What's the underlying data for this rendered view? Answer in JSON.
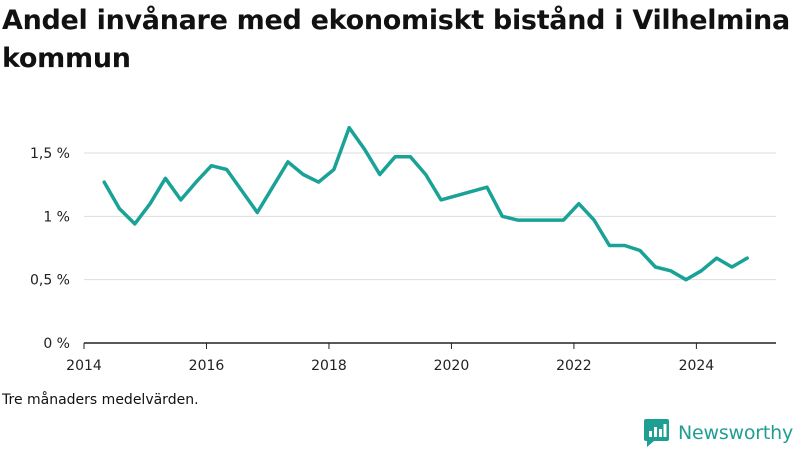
{
  "header": {
    "title": "Andel invånare med ekonomiskt bistånd i Vilhelmina kommun"
  },
  "caption": "Tre månaders medelvärden.",
  "brand": {
    "name": "Newsworthy",
    "icon": "newsworthy-logo-icon",
    "color": "#1f9e92"
  },
  "chart_data": {
    "type": "line",
    "title": "Andel invånare med ekonomiskt bistånd i Vilhelmina kommun",
    "xlabel": "",
    "ylabel": "",
    "x_ticks": [
      2014,
      2016,
      2018,
      2020,
      2022,
      2024
    ],
    "x_tick_labels": [
      "2014",
      "2016",
      "2018",
      "2020",
      "2022",
      "2024"
    ],
    "y_ticks": [
      0,
      0.5,
      1,
      1.5
    ],
    "y_tick_labels": [
      "0 %",
      "0,5 %",
      "1 %",
      "1,5 %"
    ],
    "xlim": [
      2014,
      2025.3
    ],
    "ylim": [
      0,
      1.8
    ],
    "grid": true,
    "line_color": "#1aa297",
    "series": [
      {
        "x": [
          2014.33,
          2014.58,
          2014.83,
          2015.08,
          2015.33,
          2015.58,
          2015.83,
          2016.08,
          2016.33,
          2016.58,
          2016.83,
          2017.08,
          2017.33,
          2017.58,
          2017.83,
          2018.08,
          2018.33,
          2018.58,
          2018.83,
          2019.08,
          2019.33,
          2019.58,
          2019.83,
          2020.58,
          2020.83,
          2021.08,
          2021.33,
          2021.58,
          2021.83,
          2022.08,
          2022.33,
          2022.58,
          2022.83,
          2023.08,
          2023.33,
          2023.58,
          2023.83,
          2024.08,
          2024.33,
          2024.58,
          2024.83
        ],
        "values": [
          1.27,
          1.06,
          0.94,
          1.1,
          1.3,
          1.13,
          1.27,
          1.4,
          1.37,
          1.2,
          1.03,
          1.23,
          1.43,
          1.33,
          1.27,
          1.37,
          1.7,
          1.53,
          1.33,
          1.47,
          1.47,
          1.33,
          1.13,
          1.23,
          1.0,
          0.97,
          0.97,
          0.97,
          0.97,
          1.1,
          0.97,
          0.77,
          0.77,
          0.73,
          0.6,
          0.57,
          0.5,
          0.57,
          0.67,
          0.6,
          0.67
        ]
      }
    ]
  }
}
